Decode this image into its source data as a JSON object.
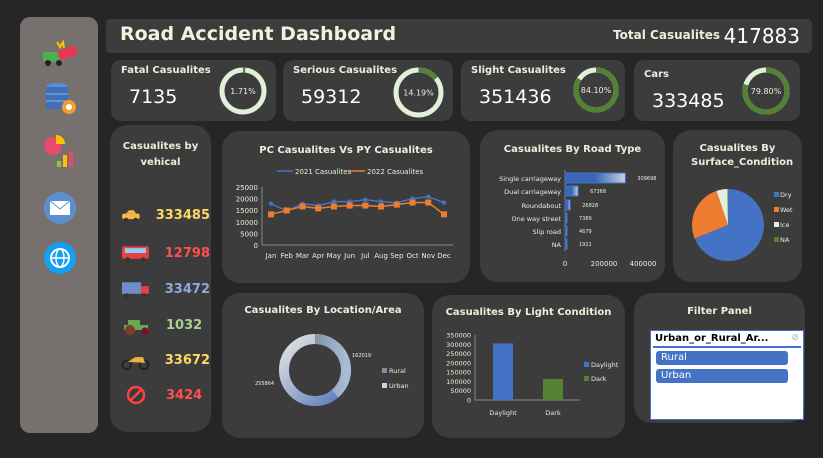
{
  "header": {
    "title": "Road Accident Dashboard",
    "total_label": "Total Casualites",
    "total_value": "417883"
  },
  "sidebar": {
    "icons": [
      "car-crash-icon",
      "database-settings-icon",
      "pie-bar-chart-icon",
      "mail-icon",
      "globe-icon"
    ]
  },
  "kpis": [
    {
      "label": "Fatal Casualites",
      "value": "7135",
      "percent": "1.71%",
      "fraction": 0.0171
    },
    {
      "label": "Serious Casualites",
      "value": "59312",
      "percent": "14.19%",
      "fraction": 0.1419
    },
    {
      "label": "Slight Casualites",
      "value": "351436",
      "percent": "84.10%",
      "fraction": 0.841
    },
    {
      "label": "Cars",
      "value": "333485",
      "percent": "79.80%",
      "fraction": 0.798
    }
  ],
  "colors": {
    "ring_track": "#e2efd9",
    "ring_fill": "#548235",
    "blue": "#4472c4",
    "orange": "#ed7d31",
    "green": "#548235"
  },
  "vehicles": {
    "title": "Casualites by vehical",
    "items": [
      {
        "icon": "car-icon",
        "value": "333485",
        "color": "#ffd966"
      },
      {
        "icon": "bus-icon",
        "value": "12798",
        "color": "#ff5050"
      },
      {
        "icon": "truck-icon",
        "value": "33472",
        "color": "#8ea9db"
      },
      {
        "icon": "tractor-icon",
        "value": "1032",
        "color": "#a9d08e"
      },
      {
        "icon": "motorcycle-icon",
        "value": "33672",
        "color": "#ffd966"
      },
      {
        "icon": "other-prohibited-icon",
        "value": "3424",
        "color": "#ff5050"
      }
    ]
  },
  "chart_data": [
    {
      "type": "line",
      "title": "PC Casualites Vs PY Casualites",
      "categories": [
        "Jan",
        "Feb",
        "Mar",
        "Apr",
        "May",
        "Jun",
        "Jul",
        "Aug",
        "Sep",
        "Oct",
        "Nov",
        "Dec"
      ],
      "ylim": [
        0,
        25000
      ],
      "yticks": [
        "0",
        "5000",
        "10000",
        "15000",
        "20000",
        "25000"
      ],
      "legend": "top",
      "series": [
        {
          "name": "2021 Casualites",
          "color": "#4472c4",
          "values": [
            17800,
            14700,
            17800,
            17000,
            18700,
            18700,
            19500,
            18700,
            18200,
            20000,
            20800,
            18300
          ]
        },
        {
          "name": "2022 Casualites",
          "color": "#ed7d31",
          "values": [
            13200,
            14900,
            16600,
            15800,
            16600,
            17000,
            17000,
            16600,
            17400,
            18300,
            18300,
            13200
          ]
        }
      ]
    },
    {
      "type": "bar",
      "orientation": "horizontal",
      "title": "Casualites By Road Type",
      "categories": [
        "Single carriageway",
        "Dual carriageway",
        "Roundabout",
        "One way street",
        "Slip road",
        "NA"
      ],
      "values": [
        309698,
        67368,
        26828,
        7389,
        4679,
        1921
      ],
      "xlim": [
        0,
        400000
      ],
      "xticks": [
        "0",
        "200000",
        "400000"
      ]
    },
    {
      "type": "pie",
      "title": "Casualites By Surface_Condition",
      "legend": "right",
      "categories": [
        "Dry",
        "Wet",
        "Ice",
        "NA"
      ],
      "values": [
        69,
        26,
        5,
        0.2
      ],
      "colors": [
        "#4472c4",
        "#ed7d31",
        "#e2efd9",
        "#548235"
      ]
    },
    {
      "type": "pie",
      "subtype": "donut",
      "title": "Casualites By Location/Area",
      "legend": "right",
      "categories": [
        "Rural",
        "Urban"
      ],
      "values": [
        162019,
        255864
      ],
      "labels": [
        "162019",
        "255864"
      ]
    },
    {
      "type": "bar",
      "title": "Casualites By Light Condition",
      "categories": [
        "Daylight",
        "Dark"
      ],
      "values": [
        305000,
        113000
      ],
      "colors": [
        "#4472c4",
        "#548235"
      ],
      "ylim": [
        0,
        350000
      ],
      "yticks": [
        "0",
        "50000",
        "100000",
        "150000",
        "200000",
        "250000",
        "300000",
        "350000"
      ],
      "legend": "right"
    }
  ],
  "filter": {
    "title": "Filter Panel",
    "field": "Urban_or_Rural_Ar...",
    "options": [
      "Rural",
      "Urban"
    ]
  }
}
